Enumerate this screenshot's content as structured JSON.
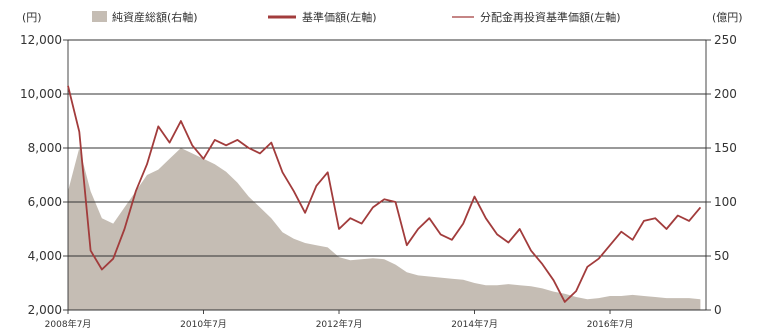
{
  "chart_data": {
    "type": "line",
    "left_axis_unit": "(円)",
    "right_axis_unit": "(億円)",
    "y_left_ticks": [
      2000,
      4000,
      6000,
      8000,
      10000,
      12000
    ],
    "y_left_tick_labels": [
      "2,000",
      "4,000",
      "6,000",
      "8,000",
      "10,000",
      "12,000"
    ],
    "y_left_range": [
      2000,
      12000
    ],
    "y_right_ticks": [
      0,
      50,
      100,
      150,
      200,
      250
    ],
    "y_right_tick_labels": [
      "0",
      "50",
      "100",
      "150",
      "200",
      "250"
    ],
    "y_right_range": [
      0,
      250
    ],
    "x_range": [
      "2008-07",
      "2017-12"
    ],
    "x_ticks": [
      "2008-07",
      "2010-07",
      "2012-07",
      "2014-07",
      "2016-07"
    ],
    "x_tick_labels": [
      "2008年7月",
      "2010年7月",
      "2012年7月",
      "2014年7月",
      "2016年7月"
    ],
    "grid": "horizontal",
    "legend_position": "top",
    "colors": {
      "net_assets": "#c5bdb4",
      "nav": "#a23c3c",
      "reinvested_nav": "#a23c3c",
      "grid": "#333333"
    },
    "series": [
      {
        "name": "純資産総額(右軸)",
        "kind": "area",
        "axis": "right",
        "x": [
          "2008-07",
          "2008-09",
          "2008-11",
          "2009-01",
          "2009-03",
          "2009-05",
          "2009-07",
          "2009-09",
          "2009-11",
          "2010-01",
          "2010-03",
          "2010-05",
          "2010-07",
          "2010-09",
          "2010-11",
          "2011-01",
          "2011-03",
          "2011-05",
          "2011-07",
          "2011-09",
          "2011-11",
          "2012-01",
          "2012-03",
          "2012-05",
          "2012-07",
          "2012-09",
          "2012-11",
          "2013-01",
          "2013-03",
          "2013-05",
          "2013-07",
          "2013-09",
          "2013-11",
          "2014-01",
          "2014-03",
          "2014-05",
          "2014-07",
          "2014-09",
          "2014-11",
          "2015-01",
          "2015-03",
          "2015-05",
          "2015-07",
          "2015-09",
          "2015-11",
          "2016-01",
          "2016-03",
          "2016-05",
          "2016-07",
          "2016-09",
          "2016-11",
          "2017-01",
          "2017-03",
          "2017-05",
          "2017-07",
          "2017-09",
          "2017-11"
        ],
        "values": [
          110,
          150,
          110,
          85,
          80,
          95,
          110,
          125,
          130,
          140,
          150,
          145,
          140,
          135,
          128,
          118,
          105,
          95,
          85,
          72,
          66,
          62,
          60,
          58,
          49,
          46,
          47,
          48,
          47,
          42,
          35,
          32,
          31,
          30,
          29,
          28,
          25,
          23,
          23,
          24,
          23,
          22,
          20,
          17,
          15,
          12,
          10,
          11,
          13,
          13,
          14,
          13,
          12,
          11,
          11,
          11,
          10
        ]
      },
      {
        "name": "基準価額(左軸)",
        "kind": "line",
        "axis": "left",
        "x": [
          "2008-07",
          "2008-09",
          "2008-11",
          "2009-01",
          "2009-03",
          "2009-05",
          "2009-07",
          "2009-09",
          "2009-11",
          "2010-01",
          "2010-03",
          "2010-05",
          "2010-07",
          "2010-09",
          "2010-11",
          "2011-01",
          "2011-03",
          "2011-05",
          "2011-07",
          "2011-09",
          "2011-11",
          "2012-01",
          "2012-03",
          "2012-05",
          "2012-07",
          "2012-09",
          "2012-11",
          "2013-01",
          "2013-03",
          "2013-05",
          "2013-07",
          "2013-09",
          "2013-11",
          "2014-01",
          "2014-03",
          "2014-05",
          "2014-07",
          "2014-09",
          "2014-11",
          "2015-01",
          "2015-03",
          "2015-05",
          "2015-07",
          "2015-09",
          "2015-11",
          "2016-01",
          "2016-03",
          "2016-05",
          "2016-07",
          "2016-09",
          "2016-11",
          "2017-01",
          "2017-03",
          "2017-05",
          "2017-07",
          "2017-09",
          "2017-11"
        ],
        "values": [
          10300,
          8600,
          4200,
          3500,
          3900,
          5000,
          6400,
          7400,
          8800,
          8200,
          9000,
          8100,
          7600,
          8300,
          8100,
          8300,
          8000,
          7800,
          8200,
          7100,
          6400,
          5600,
          6600,
          7100,
          5000,
          5400,
          5200,
          5800,
          6100,
          6000,
          4400,
          5000,
          5400,
          4800,
          4600,
          5200,
          6200,
          5400,
          4800,
          4500,
          5000,
          4200,
          3700,
          3100,
          2300,
          2700,
          3600,
          3900,
          4400,
          4900,
          4600,
          5300,
          5400,
          5000,
          5500,
          5300,
          5800
        ]
      },
      {
        "name": "分配金再投資基準価額(左軸)",
        "kind": "line",
        "axis": "left",
        "x": [
          "2008-07",
          "2008-09",
          "2008-11",
          "2009-01",
          "2009-03",
          "2009-05",
          "2009-07",
          "2009-09",
          "2009-11",
          "2010-01",
          "2010-03",
          "2010-05",
          "2010-07",
          "2010-09",
          "2010-11",
          "2011-01",
          "2011-03",
          "2011-05",
          "2011-07",
          "2011-09",
          "2011-11",
          "2012-01",
          "2012-03",
          "2012-05",
          "2012-07",
          "2012-09",
          "2012-11",
          "2013-01",
          "2013-03",
          "2013-05",
          "2013-07",
          "2013-09",
          "2013-11",
          "2014-01",
          "2014-03",
          "2014-05",
          "2014-07",
          "2014-09",
          "2014-11",
          "2015-01",
          "2015-03",
          "2015-05",
          "2015-07",
          "2015-09",
          "2015-11",
          "2016-01",
          "2016-03",
          "2016-05",
          "2016-07",
          "2016-09",
          "2016-11",
          "2017-01",
          "2017-03",
          "2017-05",
          "2017-07",
          "2017-09",
          "2017-11"
        ],
        "values": [
          10300,
          8600,
          4200,
          3500,
          3900,
          5000,
          6400,
          7400,
          8800,
          8200,
          9000,
          8100,
          7600,
          8300,
          8100,
          8300,
          8000,
          7800,
          8200,
          7100,
          6400,
          5600,
          6600,
          7100,
          5000,
          5400,
          5200,
          5800,
          6100,
          6000,
          4400,
          5000,
          5400,
          4800,
          4600,
          5200,
          6200,
          5400,
          4800,
          4500,
          5000,
          4200,
          3700,
          3100,
          2300,
          2700,
          3600,
          3900,
          4400,
          4900,
          4600,
          5300,
          5400,
          5000,
          5500,
          5300,
          5800
        ]
      }
    ],
    "legend": [
      {
        "label": "純資産総額(右軸)",
        "symbol": "block"
      },
      {
        "label": "基準価額(左軸)",
        "symbol": "thick-line"
      },
      {
        "label": "分配金再投資基準価額(左軸)",
        "symbol": "thin-line"
      }
    ]
  }
}
